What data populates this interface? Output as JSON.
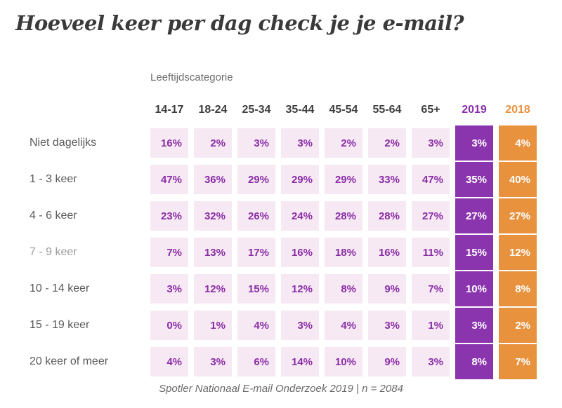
{
  "title": "Hoeveel keer per dag check je je e-mail?",
  "footer": "Spotler Nationaal E-mail Onderzoek 2019 | n = 2084",
  "table": {
    "group_label": "Leeftijdscategorie",
    "columns": [
      "14-17",
      "18-24",
      "25-34",
      "35-44",
      "45-54",
      "55-64",
      "65+",
      "2019",
      "2018"
    ],
    "rows": [
      {
        "label": "Niet dagelijks",
        "muted": false,
        "values": [
          "16%",
          "2%",
          "3%",
          "3%",
          "2%",
          "2%",
          "3%",
          "3%",
          "4%"
        ]
      },
      {
        "label": "1 - 3 keer",
        "muted": false,
        "values": [
          "47%",
          "36%",
          "29%",
          "29%",
          "29%",
          "33%",
          "47%",
          "35%",
          "40%"
        ]
      },
      {
        "label": "4 - 6 keer",
        "muted": false,
        "values": [
          "23%",
          "32%",
          "26%",
          "24%",
          "28%",
          "28%",
          "27%",
          "27%",
          "27%"
        ]
      },
      {
        "label": "7 - 9 keer",
        "muted": true,
        "values": [
          "7%",
          "13%",
          "17%",
          "16%",
          "18%",
          "16%",
          "11%",
          "15%",
          "12%"
        ]
      },
      {
        "label": "10 - 14 keer",
        "muted": false,
        "values": [
          "3%",
          "12%",
          "15%",
          "12%",
          "8%",
          "9%",
          "7%",
          "10%",
          "8%"
        ]
      },
      {
        "label": "15 - 19 keer",
        "muted": false,
        "values": [
          "0%",
          "1%",
          "4%",
          "3%",
          "4%",
          "3%",
          "1%",
          "3%",
          "2%"
        ]
      },
      {
        "label": "20 keer of meer",
        "muted": false,
        "values": [
          "4%",
          "3%",
          "6%",
          "14%",
          "10%",
          "9%",
          "3%",
          "8%",
          "7%"
        ]
      }
    ]
  },
  "colors": {
    "accent_2019": "#8a35ae",
    "accent_2018": "#e8923e",
    "cell_background": "#f6e9f4",
    "cell_text": "#8b2da6",
    "title_text": "#3a3a3a",
    "label_text": "#595959"
  },
  "chart_data": {
    "type": "heatmap",
    "title": "Hoeveel keer per dag check je je e-mail?",
    "column_group_label": "Leeftijdscategorie",
    "columns": [
      "14-17",
      "18-24",
      "25-34",
      "35-44",
      "45-54",
      "55-64",
      "65+",
      "2019",
      "2018"
    ],
    "row_categories": [
      "Niet dagelijks",
      "1 - 3 keer",
      "4 - 6 keer",
      "7 - 9 keer",
      "10 - 14 keer",
      "15 - 19 keer",
      "20 keer of meer"
    ],
    "values_percent": [
      [
        16,
        2,
        3,
        3,
        2,
        2,
        3,
        3,
        4
      ],
      [
        47,
        36,
        29,
        29,
        29,
        33,
        47,
        35,
        40
      ],
      [
        23,
        32,
        26,
        24,
        28,
        28,
        27,
        27,
        27
      ],
      [
        7,
        13,
        17,
        16,
        18,
        16,
        11,
        15,
        12
      ],
      [
        3,
        12,
        15,
        12,
        8,
        9,
        7,
        10,
        8
      ],
      [
        0,
        1,
        4,
        3,
        4,
        3,
        1,
        3,
        2
      ],
      [
        4,
        3,
        6,
        14,
        10,
        9,
        3,
        8,
        7
      ]
    ],
    "highlight_columns": {
      "2019": "#8a35ae",
      "2018": "#e8923e"
    },
    "legend_position": "none",
    "grid": false,
    "annotation": "Spotler Nationaal E-mail Onderzoek 2019 | n = 2084"
  }
}
